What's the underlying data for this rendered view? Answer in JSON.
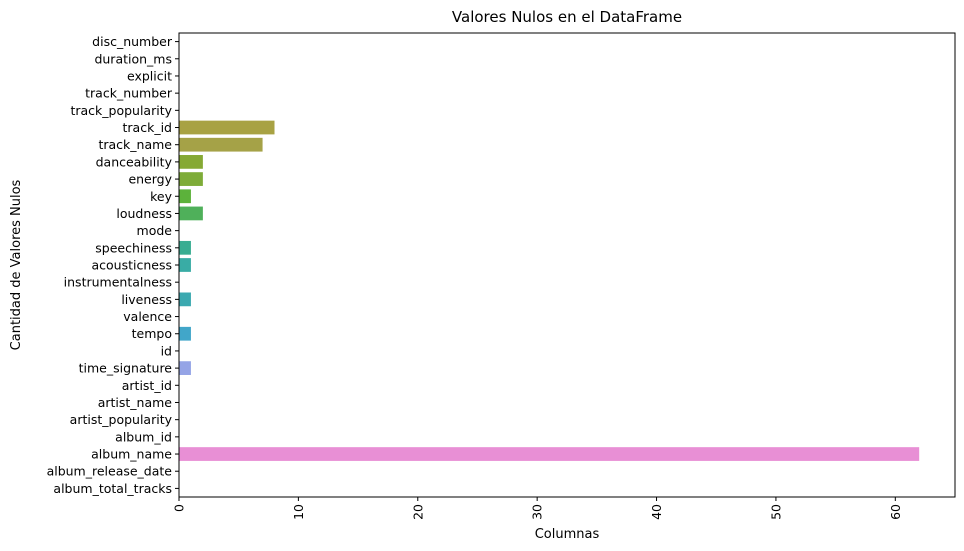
{
  "chart_data": {
    "type": "bar",
    "orientation": "horizontal",
    "title": "Valores Nulos en el DataFrame",
    "xlabel": "Columnas",
    "ylabel": "Cantidad de Valores Nulos",
    "xlim": [
      0,
      65
    ],
    "xticks": [
      0,
      10,
      20,
      30,
      40,
      50,
      60
    ],
    "grid": false,
    "legend": "none",
    "categories": [
      "disc_number",
      "duration_ms",
      "explicit",
      "track_number",
      "track_popularity",
      "track_id",
      "track_name",
      "danceability",
      "energy",
      "key",
      "loudness",
      "mode",
      "speechiness",
      "acousticness",
      "instrumentalness",
      "liveness",
      "valence",
      "tempo",
      "id",
      "time_signature",
      "artist_id",
      "artist_name",
      "artist_popularity",
      "album_id",
      "album_name",
      "album_release_date",
      "album_total_tracks"
    ],
    "values": [
      0,
      0,
      0,
      0,
      0,
      8,
      7,
      2,
      2,
      1,
      2,
      0,
      1,
      1,
      0,
      1,
      0,
      1,
      0,
      1,
      0,
      0,
      0,
      0,
      62,
      0,
      0
    ],
    "colors": [
      "#f77189",
      "#f7754f",
      "#dd8a31",
      "#c59a30",
      "#ae9d32",
      "#a8a243",
      "#a5a247",
      "#86a934",
      "#7eac38",
      "#5cb23b",
      "#4fb05a",
      "#36ad80",
      "#38ad92",
      "#39aca5",
      "#3badb5",
      "#3ba9b0",
      "#3da5c1",
      "#41a6c9",
      "#6ea2d9",
      "#95a4e6",
      "#b49cea",
      "#c893ea",
      "#de86e4",
      "#ea7fdd",
      "#e88fd5",
      "#f27fb7",
      "#f57ba3"
    ]
  }
}
